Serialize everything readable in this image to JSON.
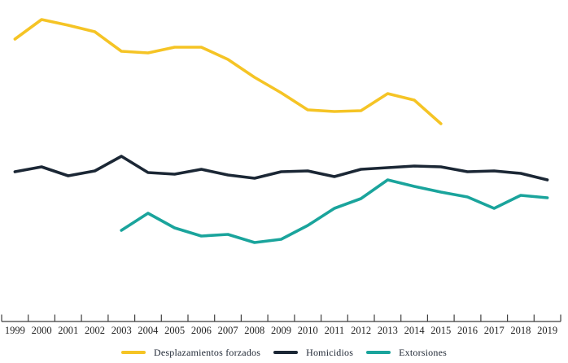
{
  "chart_data": {
    "type": "line",
    "title": "",
    "xlabel": "",
    "ylabel": "",
    "x_categories": [
      "1999",
      "2000",
      "2001",
      "2002",
      "2003",
      "2004",
      "2005",
      "2006",
      "2007",
      "2008",
      "2009",
      "2010",
      "2011",
      "2012",
      "2013",
      "2014",
      "2015",
      "2016",
      "2017",
      "2018",
      "2019"
    ],
    "ylim": [
      0,
      400
    ],
    "y_axis_visible": false,
    "grid": false,
    "legend_position": "bottom",
    "value_unit": "relative height above x-axis (no y-axis scale shown in chart)",
    "series": [
      {
        "name": "Desplazamientos forzados",
        "color": "#F5C425",
        "start_year": "1999",
        "end_year": "2015",
        "values": [
          347,
          371,
          364,
          356,
          332,
          330,
          337,
          337,
          322,
          300,
          281,
          260,
          258,
          259,
          280,
          272,
          243
        ]
      },
      {
        "name": "Homicidios",
        "color": "#1B2735",
        "start_year": "1999",
        "end_year": "2019",
        "values": [
          184,
          190,
          179,
          185,
          203,
          183,
          181,
          187,
          180,
          176,
          184,
          185,
          178,
          187,
          189,
          191,
          190,
          184,
          185,
          182,
          174
        ]
      },
      {
        "name": "Extorsiones",
        "color": "#1AA49C",
        "start_year": "2003",
        "end_year": "2019",
        "values": [
          112,
          133,
          115,
          105,
          107,
          97,
          101,
          118,
          139,
          151,
          174,
          166,
          159,
          153,
          139,
          155,
          152
        ]
      }
    ]
  },
  "axis": {
    "tick_color": "#3f3f3f",
    "label_color": "#1f1f1f"
  }
}
